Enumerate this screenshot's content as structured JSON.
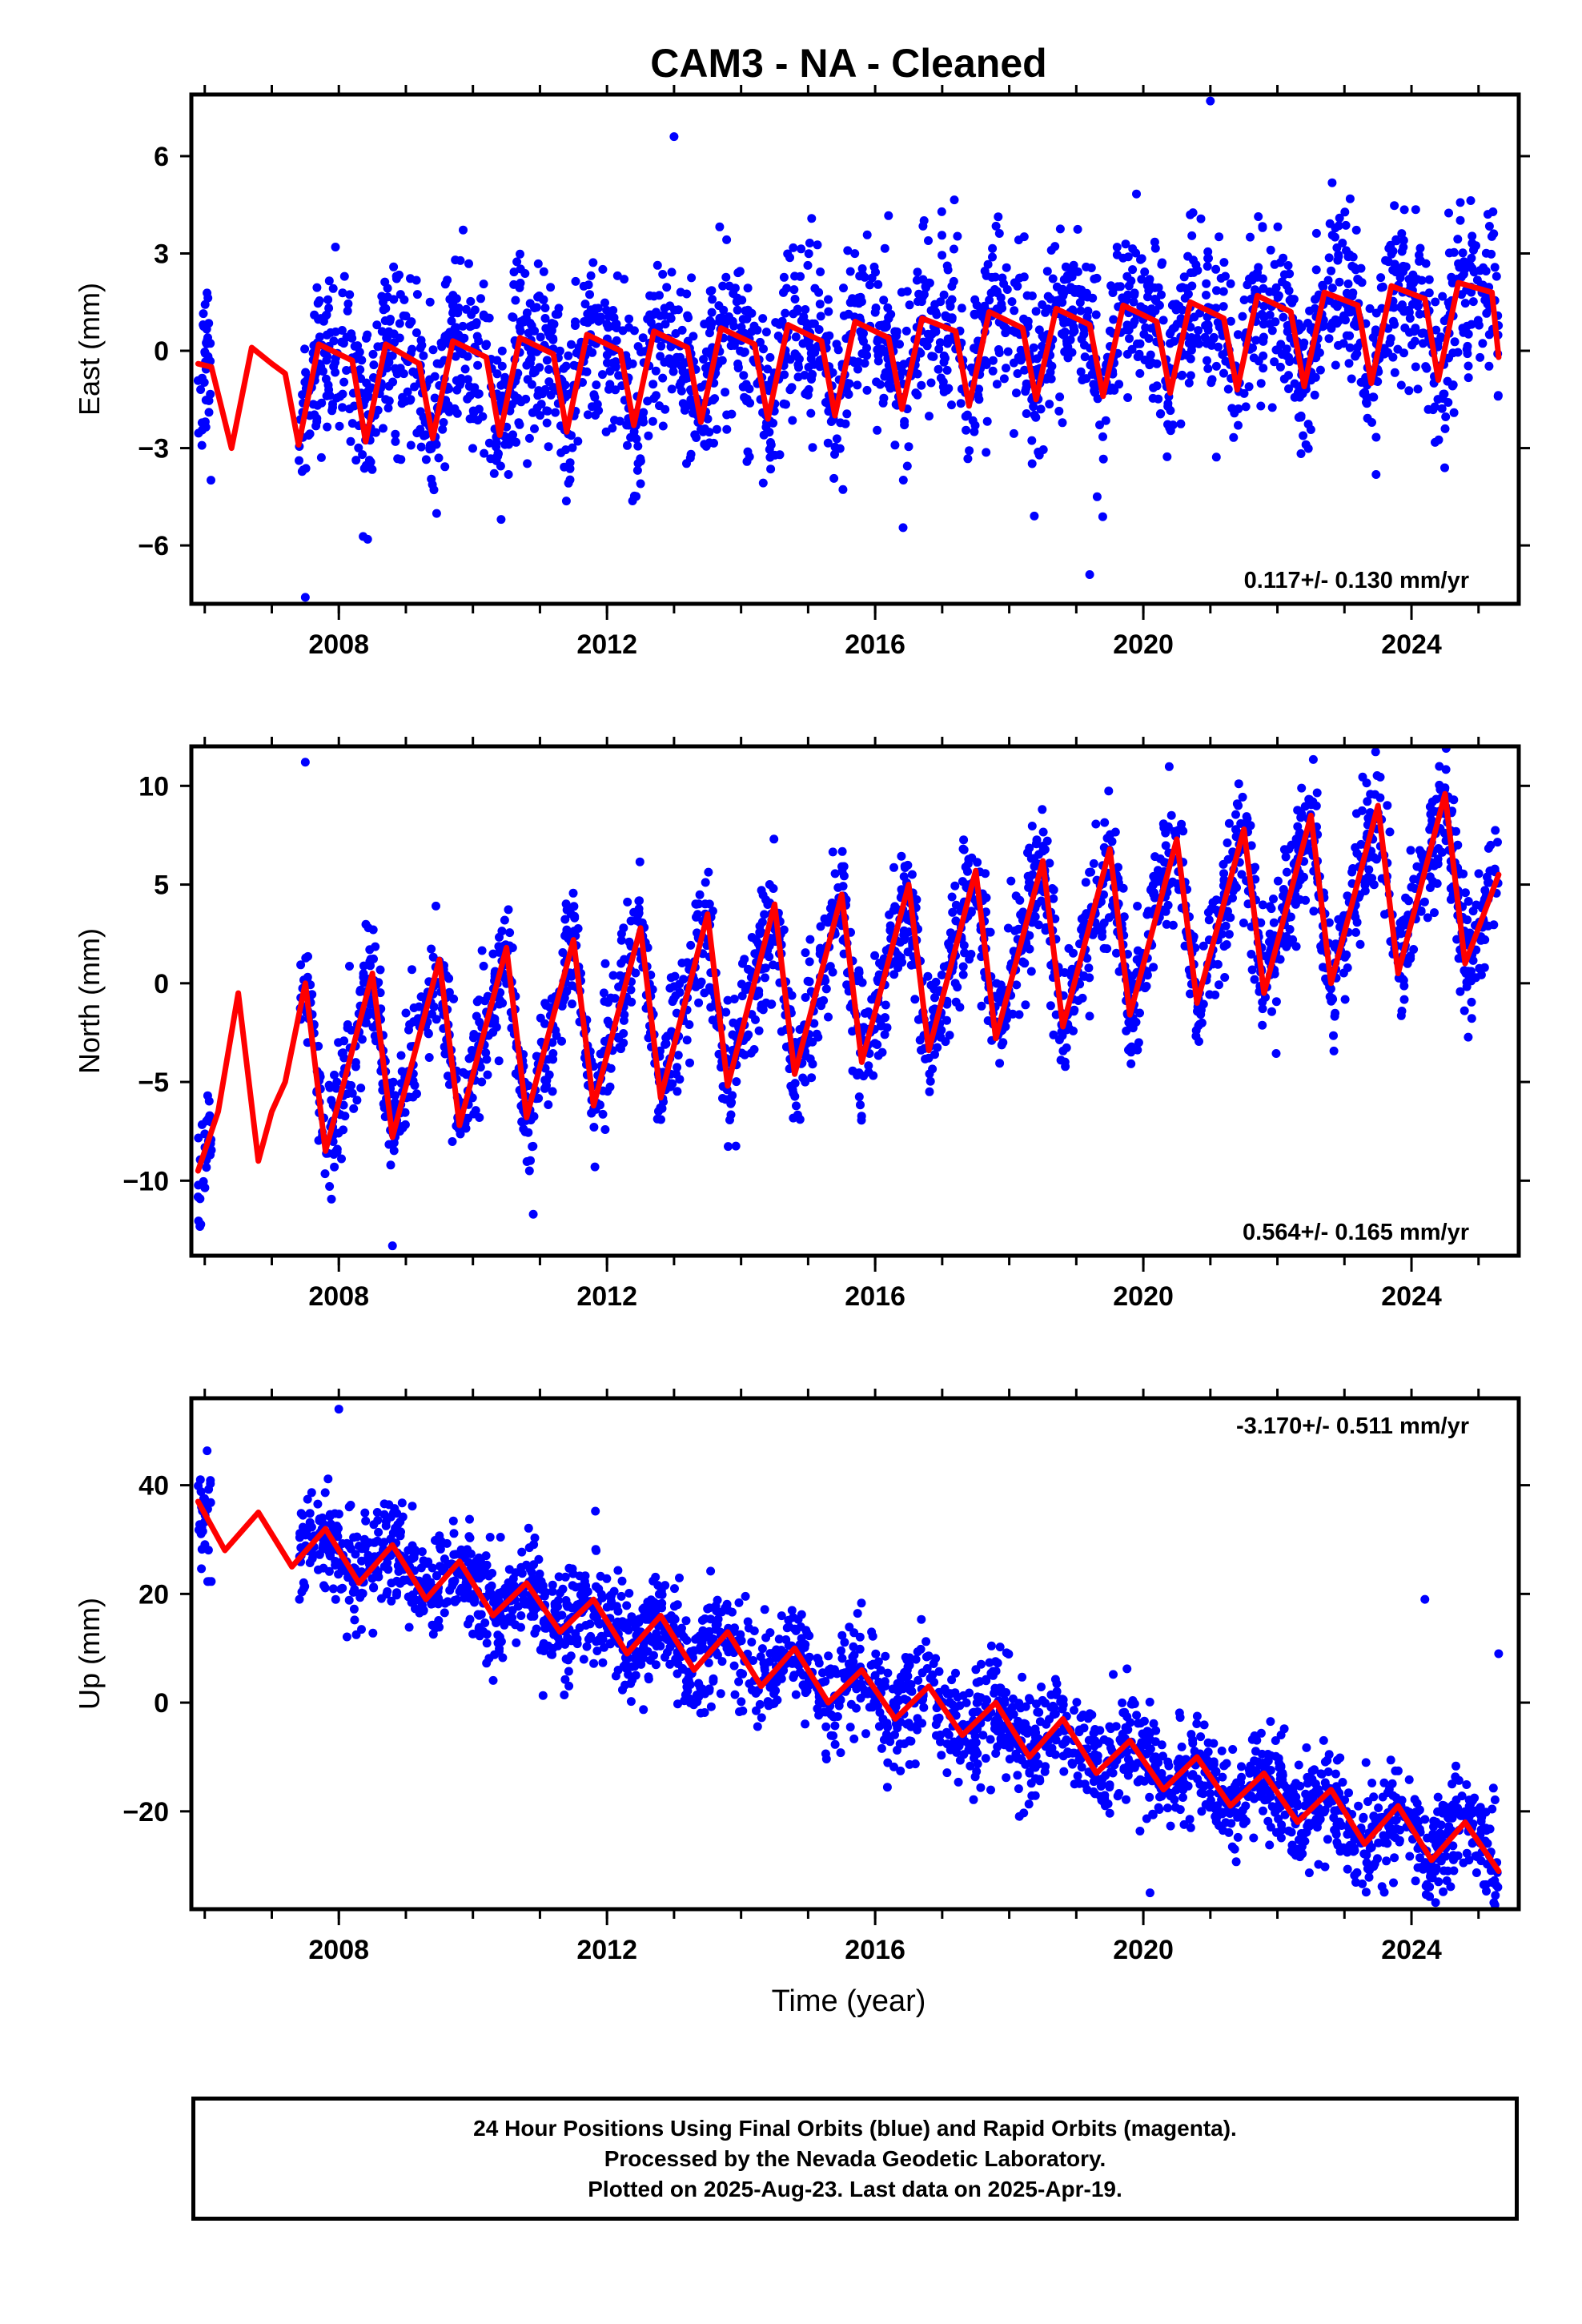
{
  "title": "CAM3  - NA - Cleaned",
  "colors": {
    "data": "#0000ff",
    "model": "#ff0000",
    "frame": "#000000"
  },
  "xlabel": "Time (year)",
  "caption": [
    "24 Hour Positions Using Final Orbits (blue) and Rapid Orbits (magenta).",
    "Processed by the Nevada Geodetic Laboratory.",
    "Plotted on 2025-Aug-23. Last data on 2025-Apr-19."
  ],
  "chart_data": [
    {
      "type": "scatter",
      "ylabel": "East (mm)",
      "rate_label": "0.117+/- 0.130 mm/yr",
      "rate_position": "bottom-right",
      "xlim": [
        2005.8,
        2025.6
      ],
      "ylim": [
        -7.8,
        7.9
      ],
      "xticks": [
        2008,
        2012,
        2016,
        2020,
        2024
      ],
      "yticks": [
        -6,
        -3,
        0,
        3,
        6
      ],
      "data_start": 2005.9,
      "data_end": 2025.3,
      "gaps": [
        [
          2006.1,
          2007.4
        ]
      ],
      "trend_rate": 0.117,
      "trend_at_2016": 0.0,
      "annual_amplitude": 2.8,
      "scatter_noise": 1.3,
      "outliers": [
        {
          "x": 2021.0,
          "y": 7.7
        },
        {
          "x": 2019.2,
          "y": -6.9
        },
        {
          "x": 2013.0,
          "y": 6.6
        },
        {
          "x": 2007.5,
          "y": -7.6
        }
      ],
      "series": [
        {
          "name": "Final Orbits",
          "kind": "points"
        },
        {
          "name": "Model",
          "kind": "line",
          "x": [
            2005.9,
            2006.1,
            2006.4,
            2006.7,
            2007.0,
            2007.2,
            2007.4,
            2007.7,
            2008.2,
            2008.4,
            2008.7,
            2009.2,
            2009.4,
            2009.7,
            2010.2,
            2010.4,
            2010.7,
            2011.2,
            2011.4,
            2011.7,
            2012.2,
            2012.4,
            2012.7,
            2013.2,
            2013.4,
            2013.7,
            2014.2,
            2014.4,
            2014.7,
            2015.2,
            2015.4,
            2015.7,
            2016.2,
            2016.4,
            2016.7,
            2017.2,
            2017.4,
            2017.7,
            2018.2,
            2018.4,
            2018.7,
            2019.2,
            2019.4,
            2019.7,
            2020.2,
            2020.4,
            2020.7,
            2021.2,
            2021.4,
            2021.7,
            2022.2,
            2022.4,
            2022.7,
            2023.2,
            2023.4,
            2023.7,
            2024.2,
            2024.4,
            2024.7,
            2025.2,
            2025.3
          ],
          "y": [
            -0.4,
            -0.5,
            -3.0,
            0.1,
            -0.4,
            -0.7,
            -2.9,
            0.2,
            -0.3,
            -2.8,
            0.2,
            -0.4,
            -2.7,
            0.3,
            -0.2,
            -2.6,
            0.4,
            -0.1,
            -2.5,
            0.5,
            0.0,
            -2.3,
            0.6,
            0.1,
            -2.2,
            0.7,
            0.2,
            -2.1,
            0.8,
            0.3,
            -2.0,
            0.9,
            0.4,
            -1.8,
            1.0,
            0.6,
            -1.7,
            1.2,
            0.7,
            -1.5,
            1.3,
            0.8,
            -1.4,
            1.4,
            0.9,
            -1.3,
            1.5,
            1.0,
            -1.2,
            1.7,
            1.2,
            -1.1,
            1.8,
            1.4,
            -1.0,
            2.0,
            1.6,
            -0.9,
            2.1,
            1.8,
            -0.2
          ]
        }
      ]
    },
    {
      "type": "scatter",
      "ylabel": "North (mm)",
      "rate_label": "0.564+/- 0.165 mm/yr",
      "rate_position": "bottom-right",
      "xlim": [
        2005.8,
        2025.6
      ],
      "ylim": [
        -13.8,
        12.0
      ],
      "xticks": [
        2008,
        2012,
        2016,
        2020,
        2024
      ],
      "yticks": [
        -10,
        -5,
        0,
        5,
        10
      ],
      "data_start": 2005.9,
      "data_end": 2025.3,
      "gaps": [
        [
          2006.1,
          2007.4
        ]
      ],
      "trend_rate": 0.564,
      "trend_at_2016": -1.5,
      "annual_amplitude": 4.5,
      "scatter_noise": 1.6,
      "outliers": [
        {
          "x": 2007.5,
          "y": 11.2
        },
        {
          "x": 2008.8,
          "y": -13.3
        },
        {
          "x": 2010.9,
          "y": -11.7
        },
        {
          "x": 2024.5,
          "y": 9.9
        }
      ],
      "series": [
        {
          "name": "Final Orbits",
          "kind": "points"
        },
        {
          "name": "Model",
          "kind": "line",
          "x": [
            2005.9,
            2006.2,
            2006.5,
            2006.8,
            2007.0,
            2007.2,
            2007.5,
            2007.8,
            2008.0,
            2008.5,
            2008.8,
            2009.5,
            2009.8,
            2010.5,
            2010.8,
            2011.5,
            2011.8,
            2012.5,
            2012.8,
            2013.5,
            2013.8,
            2014.5,
            2014.8,
            2015.5,
            2015.8,
            2016.5,
            2016.8,
            2017.5,
            2017.8,
            2018.5,
            2018.8,
            2019.5,
            2019.8,
            2020.5,
            2020.8,
            2021.5,
            2021.8,
            2022.5,
            2022.8,
            2023.5,
            2023.8,
            2024.5,
            2024.8,
            2025.3
          ],
          "y": [
            -9.5,
            -6.5,
            -0.5,
            -9.0,
            -6.5,
            -5.0,
            0.0,
            -8.5,
            -6.0,
            0.5,
            -7.8,
            1.2,
            -7.2,
            1.8,
            -6.8,
            2.2,
            -6.2,
            2.8,
            -5.8,
            3.5,
            -5.2,
            4.0,
            -4.6,
            4.5,
            -4.0,
            5.0,
            -3.4,
            5.7,
            -2.8,
            6.2,
            -2.2,
            6.8,
            -1.6,
            7.3,
            -1.0,
            7.8,
            -0.5,
            8.5,
            0.0,
            9.0,
            0.5,
            9.6,
            1.0,
            5.5
          ]
        }
      ]
    },
    {
      "type": "scatter",
      "ylabel": "Up (mm)",
      "rate_label": "-3.170+/- 0.511 mm/yr",
      "rate_position": "top-right",
      "xlim": [
        2005.8,
        2025.6
      ],
      "ylim": [
        -38.0,
        56.0
      ],
      "xticks": [
        2008,
        2012,
        2016,
        2020,
        2024
      ],
      "yticks": [
        -20,
        0,
        20,
        40
      ],
      "data_start": 2005.9,
      "data_end": 2025.3,
      "gaps": [
        [
          2006.1,
          2007.4
        ]
      ],
      "trend_rate": -3.17,
      "trend_at_2016": -0.2,
      "annual_amplitude": 3.5,
      "scatter_noise": 5.0,
      "outliers": [
        {
          "x": 2008.0,
          "y": 54.0
        },
        {
          "x": 2024.2,
          "y": 19.0
        },
        {
          "x": 2025.3,
          "y": 9.0
        },
        {
          "x": 2020.1,
          "y": -35.0
        }
      ],
      "series": [
        {
          "name": "Final Orbits",
          "kind": "points"
        },
        {
          "name": "Model",
          "kind": "line",
          "x": [
            2005.9,
            2006.3,
            2006.8,
            2007.3,
            2007.8,
            2008.3,
            2008.8,
            2009.3,
            2009.8,
            2010.3,
            2010.8,
            2011.3,
            2011.8,
            2012.3,
            2012.8,
            2013.3,
            2013.8,
            2014.3,
            2014.8,
            2015.3,
            2015.8,
            2016.3,
            2016.8,
            2017.3,
            2017.8,
            2018.3,
            2018.8,
            2019.3,
            2019.8,
            2020.3,
            2020.8,
            2021.3,
            2021.8,
            2022.3,
            2022.8,
            2023.3,
            2023.8,
            2024.3,
            2024.8,
            2025.3
          ],
          "y": [
            37,
            28,
            35,
            25,
            32,
            22,
            29,
            19,
            26,
            16,
            22,
            13,
            19,
            9,
            16,
            6,
            13,
            3,
            10,
            0,
            6,
            -3,
            3,
            -6,
            0,
            -10,
            -3,
            -13,
            -7,
            -16,
            -10,
            -19,
            -13,
            -22,
            -16,
            -26,
            -19,
            -29,
            -22,
            -31
          ]
        }
      ]
    }
  ]
}
